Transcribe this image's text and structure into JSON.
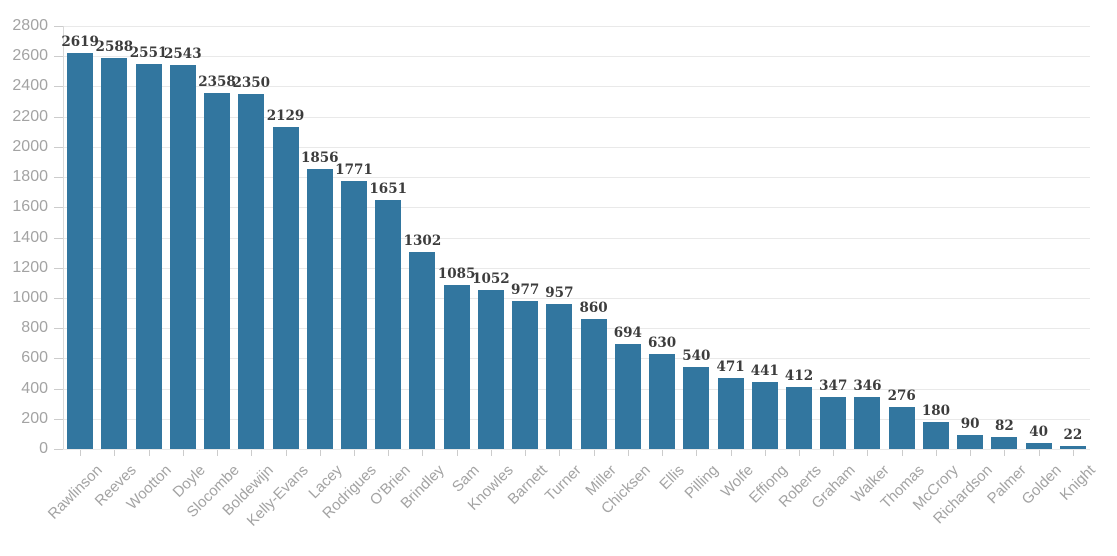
{
  "chart_data": {
    "type": "bar",
    "title": "",
    "xlabel": "",
    "ylabel": "",
    "categories": [
      "Rawlinson",
      "Reeves",
      "Wootton",
      "Doyle",
      "Slocombe",
      "Boldewijn",
      "Kelly-Evans",
      "Lacey",
      "Rodrigues",
      "O'Brien",
      "Brindley",
      "Sam",
      "Knowles",
      "Barnett",
      "Turner",
      "Miller",
      "Chicksen",
      "Ellis",
      "Pilling",
      "Wolfe",
      "Effiong",
      "Roberts",
      "Graham",
      "Walker",
      "Thomas",
      "McCrory",
      "Richardson",
      "Palmer",
      "Golden",
      "Knight"
    ],
    "values": [
      2619,
      2588,
      2551,
      2543,
      2358,
      2350,
      2129,
      1856,
      1771,
      1651,
      1302,
      1085,
      1052,
      977,
      957,
      860,
      694,
      630,
      540,
      471,
      441,
      412,
      347,
      346,
      276,
      180,
      90,
      82,
      40,
      22
    ],
    "value_labels_shown": true,
    "ylim": [
      0,
      2800
    ],
    "y_tick_step": 200,
    "y_ticks": [
      0,
      200,
      400,
      600,
      800,
      1000,
      1200,
      1400,
      1600,
      1800,
      2000,
      2200,
      2400,
      2600,
      2800
    ],
    "grid": "horizontal",
    "legend": false,
    "colors": {
      "bar": "#32769f",
      "value_label": "#3c3c3c",
      "axis_text": "#a3a3a3",
      "gridline": "#e9e9e9",
      "axis_line": "#d9d9d9",
      "tick": "#cccccc",
      "background": "#ffffff"
    }
  }
}
